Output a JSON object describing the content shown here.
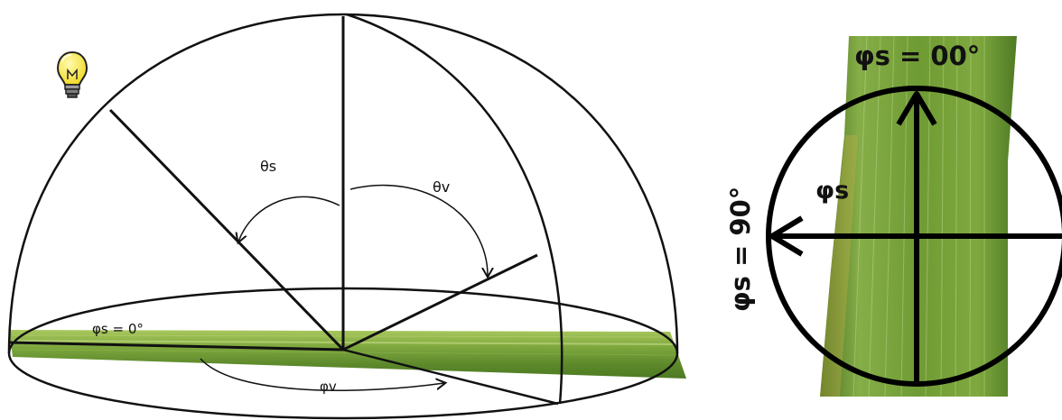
{
  "left_diagram": {
    "labels": {
      "theta_s": "θs",
      "theta_v": "θv",
      "phi_s_zero": "φs = 0°",
      "phi_v": "φv"
    },
    "icons": [
      "light-bulb-icon"
    ],
    "colors": {
      "leaf_light": "#a9c85e",
      "leaf_mid": "#6e9a33",
      "leaf_dark": "#4e7a22",
      "line": "#111111",
      "bulb": "#f2e030"
    }
  },
  "right_diagram": {
    "labels": {
      "phi_s_00": "φs = 00°",
      "phi_s": "φs",
      "phi_s_90": "φs = 90°"
    },
    "colors": {
      "leaf_light": "#9cc255",
      "leaf_mid": "#6f9b34",
      "leaf_dark": "#476e1e",
      "line": "#000000"
    }
  }
}
